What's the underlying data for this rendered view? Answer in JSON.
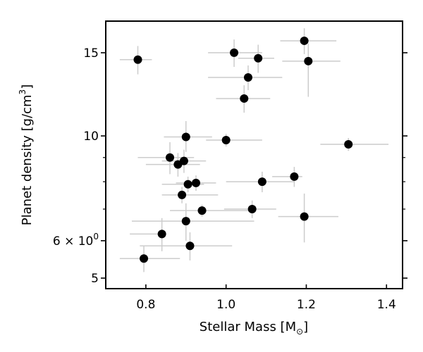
{
  "chart_data": {
    "type": "scatter",
    "xlabel_main": "Stellar Mass [M",
    "xlabel_sub": "⊙",
    "xlabel_end": "]",
    "ylabel_main": "Planet density [g/cm",
    "ylabel_sup": "3",
    "ylabel_end": "]",
    "xlim": [
      0.7,
      1.44
    ],
    "ylim": [
      4.75,
      17.5
    ],
    "yscale": "log",
    "grid": false,
    "legend": "none",
    "x_ticks": [
      0.8,
      1.0,
      1.2,
      1.4
    ],
    "x_tick_labels": [
      "0.8",
      "1.0",
      "1.2",
      "1.4"
    ],
    "y_ticks": [
      5,
      6,
      10,
      15
    ],
    "y_tick_labels": [
      "5",
      "6 × 10",
      "10",
      "15"
    ],
    "y_tick_label_6_sup": "0",
    "y_minor_ticks": [
      7,
      8,
      9
    ],
    "colors": {
      "point": "#000000",
      "errorbar": "#cccccc",
      "frame": "#000000"
    },
    "points": [
      {
        "x": 0.78,
        "y": 14.5,
        "xerr": [
          0.045,
          0.035
        ],
        "yerr": [
          1.0,
          1.0
        ]
      },
      {
        "x": 1.02,
        "y": 15.0,
        "xerr": [
          0.065,
          0.07
        ],
        "yerr": [
          1.0,
          1.0
        ]
      },
      {
        "x": 1.08,
        "y": 14.6,
        "xerr": [
          0.05,
          0.04
        ],
        "yerr": [
          1.0,
          1.0
        ]
      },
      {
        "x": 1.195,
        "y": 15.9,
        "xerr": [
          0.06,
          0.08
        ],
        "yerr": [
          1.0,
          1.0
        ]
      },
      {
        "x": 1.205,
        "y": 14.4,
        "xerr": [
          0.065,
          0.08
        ],
        "yerr": [
          2.3,
          1.3
        ]
      },
      {
        "x": 1.055,
        "y": 13.3,
        "xerr": [
          0.1,
          0.085
        ],
        "yerr": [
          0.8,
          0.8
        ]
      },
      {
        "x": 1.045,
        "y": 12.0,
        "xerr": [
          0.07,
          0.065
        ],
        "yerr": [
          0.8,
          0.8
        ]
      },
      {
        "x": 0.9,
        "y": 9.95,
        "xerr": [
          0.055,
          0.065
        ],
        "yerr": [
          0.7,
          0.8
        ]
      },
      {
        "x": 1.0,
        "y": 9.8,
        "xerr": [
          0.05,
          0.09
        ],
        "yerr": [
          0.3,
          0.3
        ]
      },
      {
        "x": 1.305,
        "y": 9.6,
        "xerr": [
          0.07,
          0.1
        ],
        "yerr": [
          0.3,
          0.3
        ]
      },
      {
        "x": 0.86,
        "y": 9.0,
        "xerr": [
          0.08,
          0.06
        ],
        "yerr": [
          0.7,
          0.7
        ]
      },
      {
        "x": 0.895,
        "y": 8.85,
        "xerr": [
          0.055,
          0.055
        ],
        "yerr": [
          0.5,
          0.5
        ]
      },
      {
        "x": 0.88,
        "y": 8.7,
        "xerr": [
          0.08,
          0.055
        ],
        "yerr": [
          0.5,
          0.5
        ]
      },
      {
        "x": 1.17,
        "y": 8.2,
        "xerr": [
          0.055,
          0.02
        ],
        "yerr": [
          0.4,
          0.4
        ]
      },
      {
        "x": 1.09,
        "y": 8.0,
        "xerr": [
          0.09,
          0.08
        ],
        "yerr": [
          0.4,
          0.4
        ]
      },
      {
        "x": 0.925,
        "y": 7.95,
        "xerr": [
          0.05,
          0.05
        ],
        "yerr": [
          0.3,
          0.3
        ]
      },
      {
        "x": 0.905,
        "y": 7.9,
        "xerr": [
          0.065,
          0.04
        ],
        "yerr": [
          0.3,
          0.3
        ]
      },
      {
        "x": 0.89,
        "y": 7.5,
        "xerr": [
          0.05,
          0.09
        ],
        "yerr": [
          0.3,
          0.3
        ]
      },
      {
        "x": 1.065,
        "y": 7.0,
        "xerr": [
          0.07,
          0.06
        ],
        "yerr": [
          0.3,
          0.3
        ]
      },
      {
        "x": 0.94,
        "y": 6.95,
        "xerr": [
          0.08,
          0.13
        ],
        "yerr": [
          0.2,
          0.2
        ]
      },
      {
        "x": 1.195,
        "y": 6.75,
        "xerr": [
          0.065,
          0.085
        ],
        "yerr": [
          0.8,
          0.8
        ]
      },
      {
        "x": 0.9,
        "y": 6.6,
        "xerr": [
          0.135,
          0.17
        ],
        "yerr": [
          0.6,
          0.6
        ]
      },
      {
        "x": 0.84,
        "y": 6.2,
        "xerr": [
          0.08,
          0.0
        ],
        "yerr": [
          0.5,
          0.5
        ]
      },
      {
        "x": 0.91,
        "y": 5.85,
        "xerr": [
          0.125,
          0.105
        ],
        "yerr": [
          0.4,
          0.4
        ]
      },
      {
        "x": 0.795,
        "y": 5.5,
        "xerr": [
          0.06,
          0.09
        ],
        "yerr": [
          0.35,
          0.35
        ]
      }
    ]
  }
}
